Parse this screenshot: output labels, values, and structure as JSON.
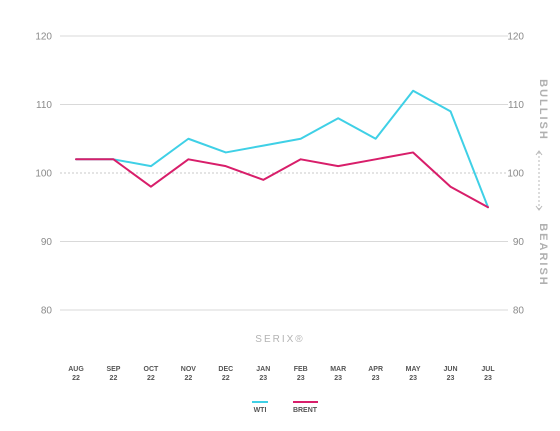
{
  "chart_data": {
    "type": "line",
    "categories": [
      "AUG 22",
      "SEP 22",
      "OCT 22",
      "NOV 22",
      "DEC 22",
      "JAN 23",
      "FEB 23",
      "MAR 23",
      "APR 23",
      "MAY 23",
      "JUN 23",
      "JUL 23"
    ],
    "category_labels": [
      [
        "AUG",
        "22"
      ],
      [
        "SEP",
        "22"
      ],
      [
        "OCT",
        "22"
      ],
      [
        "NOV",
        "22"
      ],
      [
        "DEC",
        "22"
      ],
      [
        "JAN",
        "23"
      ],
      [
        "FEB",
        "23"
      ],
      [
        "MAR",
        "23"
      ],
      [
        "APR",
        "23"
      ],
      [
        "MAY",
        "23"
      ],
      [
        "JUN",
        "23"
      ],
      [
        "JUL",
        "23"
      ]
    ],
    "series": [
      {
        "name": "WTI",
        "color": "#3fd0e6",
        "values": [
          null,
          102,
          101,
          105,
          103,
          104,
          105,
          108,
          105,
          112,
          109,
          95
        ]
      },
      {
        "name": "BRENT",
        "color": "#d81e6a",
        "values": [
          102,
          102,
          98,
          102,
          101,
          99,
          102,
          101,
          102,
          103,
          98,
          95
        ]
      }
    ],
    "ylim": [
      80,
      120
    ],
    "yticks": [
      80,
      90,
      100,
      110,
      120
    ],
    "ytick_labels": [
      "80",
      "90",
      "100",
      "110",
      "120"
    ],
    "right_labels": {
      "top": "BULLISH",
      "bottom": "BEARISH"
    },
    "brand_label": "SERIX®",
    "grid": true,
    "legend": "bottom-center",
    "baseline": 100
  }
}
